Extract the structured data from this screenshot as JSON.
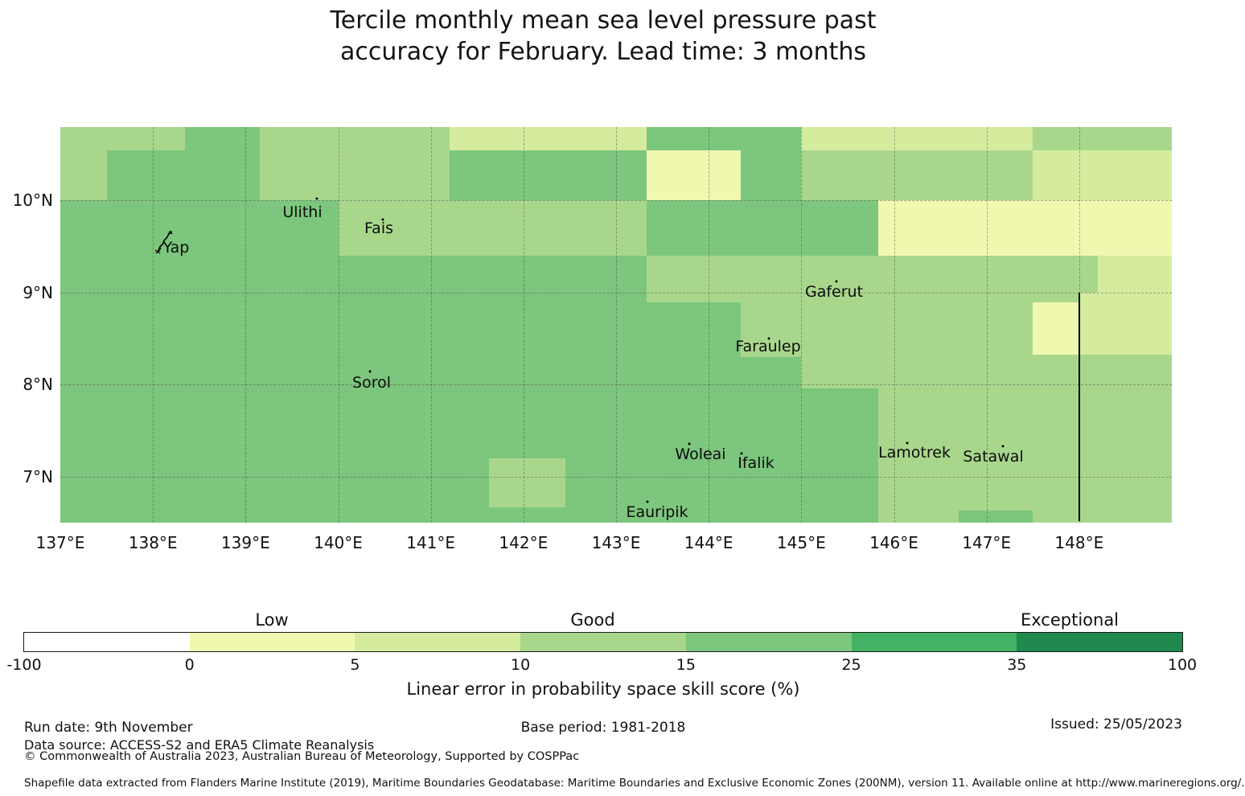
{
  "title": {
    "line1": "Tercile monthly mean sea level pressure past",
    "line2": "accuracy for February. Lead time: 3 months"
  },
  "chart_data": {
    "type": "heatmap",
    "title": "Tercile monthly mean sea level pressure past accuracy for February. Lead time: 3 months",
    "colorbar_label": "Linear error in probability space skill score (%)",
    "projection": {
      "lon_min": 137.0,
      "lon_max": 149.0,
      "lat_min": 6.5,
      "lat_max": 10.7934
    },
    "grid": true,
    "x_ticks": [
      {
        "lon": 137,
        "label": "137°E"
      },
      {
        "lon": 138,
        "label": "138°E"
      },
      {
        "lon": 139,
        "label": "139°E"
      },
      {
        "lon": 140,
        "label": "140°E"
      },
      {
        "lon": 141,
        "label": "141°E"
      },
      {
        "lon": 142,
        "label": "142°E"
      },
      {
        "lon": 143,
        "label": "143°E"
      },
      {
        "lon": 144,
        "label": "144°E"
      },
      {
        "lon": 145,
        "label": "145°E"
      },
      {
        "lon": 146,
        "label": "146°E"
      },
      {
        "lon": 147,
        "label": "147°E"
      },
      {
        "lon": 148,
        "label": "148°E"
      }
    ],
    "y_ticks": [
      {
        "lat": 10,
        "label": "10°N"
      },
      {
        "lat": 9,
        "label": "9°N"
      },
      {
        "lat": 8,
        "label": "8°N"
      },
      {
        "lat": 7,
        "label": "7°N"
      }
    ],
    "palette": {
      "neg": "#ffffff",
      "b0_5": "#f0f8b0",
      "b5_10": "#d5ec9f",
      "b10_15": "#a8d78c",
      "b15_25": "#7cc67d",
      "b25_35": "#44b264",
      "b35_100": "#20894d"
    },
    "bins": [
      {
        "min": -100,
        "max": 0,
        "color_key": "neg"
      },
      {
        "min": 0,
        "max": 5,
        "color_key": "b0_5",
        "category": "Low"
      },
      {
        "min": 5,
        "max": 10,
        "color_key": "b5_10"
      },
      {
        "min": 10,
        "max": 15,
        "color_key": "b10_15",
        "category": "Good"
      },
      {
        "min": 15,
        "max": 25,
        "color_key": "b15_25"
      },
      {
        "min": 25,
        "max": 35,
        "color_key": "b25_35",
        "category": "Exceptional"
      },
      {
        "min": 35,
        "max": 100,
        "color_key": "b35_100"
      }
    ],
    "base_color_key": "b15_25",
    "cells": [
      {
        "x1": 137.0,
        "x2": 138.35,
        "y1": 10.54,
        "y2": 10.79,
        "k": "b10_15"
      },
      {
        "x1": 137.0,
        "x2": 137.5,
        "y1": 10.0,
        "y2": 10.54,
        "k": "b10_15"
      },
      {
        "x1": 139.15,
        "x2": 141.2,
        "y1": 10.0,
        "y2": 10.79,
        "k": "b10_15"
      },
      {
        "x1": 141.2,
        "x2": 143.33,
        "y1": 10.54,
        "y2": 10.79,
        "k": "b5_10"
      },
      {
        "x1": 143.33,
        "x2": 144.35,
        "y1": 10.0,
        "y2": 10.54,
        "k": "b0_5"
      },
      {
        "x1": 145.0,
        "x2": 147.5,
        "y1": 10.54,
        "y2": 10.79,
        "k": "b5_10"
      },
      {
        "x1": 147.5,
        "x2": 149.0,
        "y1": 10.54,
        "y2": 10.79,
        "k": "b10_15"
      },
      {
        "x1": 145.0,
        "x2": 147.5,
        "y1": 10.0,
        "y2": 10.54,
        "k": "b10_15"
      },
      {
        "x1": 147.5,
        "x2": 149.0,
        "y1": 10.0,
        "y2": 10.54,
        "k": "b5_10"
      },
      {
        "x1": 140.0,
        "x2": 143.33,
        "y1": 9.4,
        "y2": 10.0,
        "k": "b10_15"
      },
      {
        "x1": 145.83,
        "x2": 149.0,
        "y1": 9.4,
        "y2": 10.0,
        "k": "b0_5"
      },
      {
        "x1": 143.33,
        "x2": 148.2,
        "y1": 8.89,
        "y2": 9.4,
        "k": "b10_15"
      },
      {
        "x1": 144.35,
        "x2": 145.0,
        "y1": 8.3,
        "y2": 8.89,
        "k": "b10_15"
      },
      {
        "x1": 145.0,
        "x2": 145.83,
        "y1": 7.96,
        "y2": 8.89,
        "k": "b10_15"
      },
      {
        "x1": 145.83,
        "x2": 149.0,
        "y1": 6.5,
        "y2": 9.0,
        "k": "b10_15"
      },
      {
        "x1": 147.5,
        "x2": 148.0,
        "y1": 8.32,
        "y2": 8.89,
        "k": "b0_5"
      },
      {
        "x1": 148.2,
        "x2": 149.0,
        "y1": 9.0,
        "y2": 9.4,
        "k": "b5_10"
      },
      {
        "x1": 148.0,
        "x2": 149.0,
        "y1": 8.32,
        "y2": 9.0,
        "k": "b5_10"
      },
      {
        "x1": 146.7,
        "x2": 147.5,
        "y1": 6.5,
        "y2": 6.63,
        "k": "b15_25"
      },
      {
        "x1": 141.63,
        "x2": 142.45,
        "y1": 6.67,
        "y2": 7.2,
        "k": "b10_15"
      }
    ],
    "islands": [
      {
        "name": "Yap",
        "x": 219,
        "y": 308,
        "shape": true
      },
      {
        "name": "Ulithi",
        "x": 376,
        "y": 264,
        "dot": [
          394,
          247
        ]
      },
      {
        "name": "Fais",
        "x": 471,
        "y": 284,
        "dot": [
          476,
          273
        ]
      },
      {
        "name": "Gaferut",
        "x": 1037,
        "y": 363,
        "dot": [
          1040,
          350
        ]
      },
      {
        "name": "Faraulep",
        "x": 955,
        "y": 431,
        "dot": [
          956,
          421
        ]
      },
      {
        "name": "Sorol",
        "x": 462,
        "y": 476,
        "dot": [
          460,
          462
        ]
      },
      {
        "name": "Woleai",
        "x": 871,
        "y": 565,
        "dot": [
          857,
          552
        ]
      },
      {
        "name": "Ifalik",
        "x": 940,
        "y": 576,
        "dot": [
          922,
          564
        ]
      },
      {
        "name": "Lamotrek",
        "x": 1137,
        "y": 563,
        "dot": [
          1128,
          551
        ]
      },
      {
        "name": "Satawal",
        "x": 1235,
        "y": 568,
        "dot": [
          1247,
          555
        ]
      },
      {
        "name": "Eauripik",
        "x": 817,
        "y": 637,
        "dot": [
          805,
          624
        ]
      }
    ],
    "eez_boundary": {
      "lon": 148.0,
      "lat_top": 9.0,
      "lat_bottom": 6.52
    },
    "colorbar_ticks": [
      "-100",
      "0",
      "5",
      "10",
      "15",
      "25",
      "35",
      "100"
    ],
    "colorbar_categories": [
      {
        "label": "Low",
        "x": 338
      },
      {
        "label": "Good",
        "x": 737
      },
      {
        "label": "Exceptional",
        "x": 1330
      }
    ]
  },
  "footer": {
    "run_date": "Run date: 9th November",
    "base_period": "Base period: 1981-2018",
    "issued": "Issued: 25/05/2023",
    "data_source": "Data source: ACCESS-S2 and ERA5 Climate Reanalysis",
    "copyright": "© Commonwealth of Australia 2023, Australian Bureau of Meteorology, Supported by COSPPac",
    "shapefile_note": "Shapefile data extracted from Flanders Marine Institute (2019), Maritime Boundaries Geodatabase: Maritime Boundaries and Exclusive Economic Zones (200NM), version 11. Available online at http://www.marineregions.org/."
  }
}
